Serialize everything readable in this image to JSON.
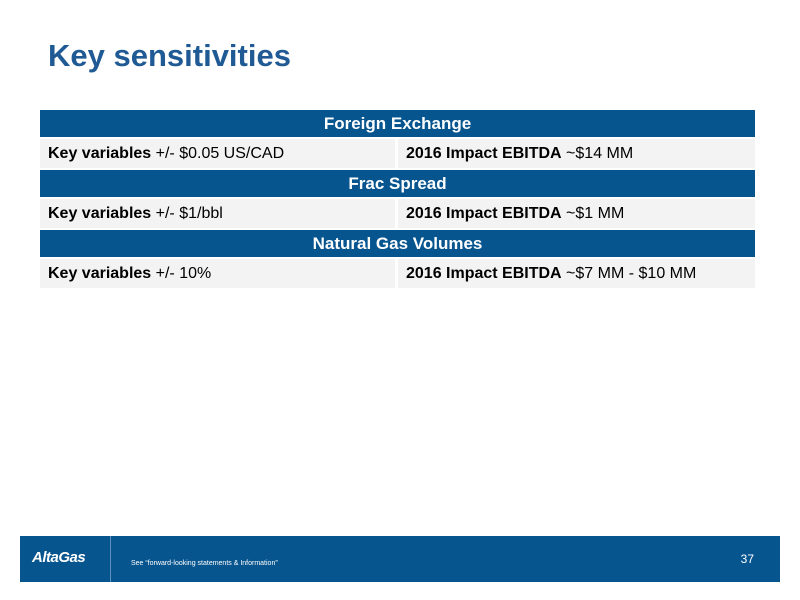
{
  "title": "Key sensitivities",
  "sections": [
    {
      "header": "Foreign Exchange",
      "left_label": "Key variables",
      "left_value": " +/- $0.05 US/CAD",
      "right_label": "2016 Impact EBITDA",
      "right_value": " ~$14 MM"
    },
    {
      "header": "Frac Spread",
      "left_label": "Key variables",
      "left_value": " +/- $1/bbl",
      "right_label": "2016 Impact EBITDA",
      "right_value": " ~$1 MM"
    },
    {
      "header": "Natural Gas Volumes",
      "left_label": "Key variables",
      "left_value": " +/- 10%",
      "right_label": "2016 Impact EBITDA",
      "right_value": " ~$7 MM - $10 MM"
    }
  ],
  "footer": {
    "logo": "AltaGas",
    "disclaimer": "See “forward-looking statements & Information”",
    "page_number": "37"
  },
  "colors": {
    "title": "#1f5a95",
    "header_bg": "#07558f",
    "cell_bg": "#f3f3f3"
  }
}
